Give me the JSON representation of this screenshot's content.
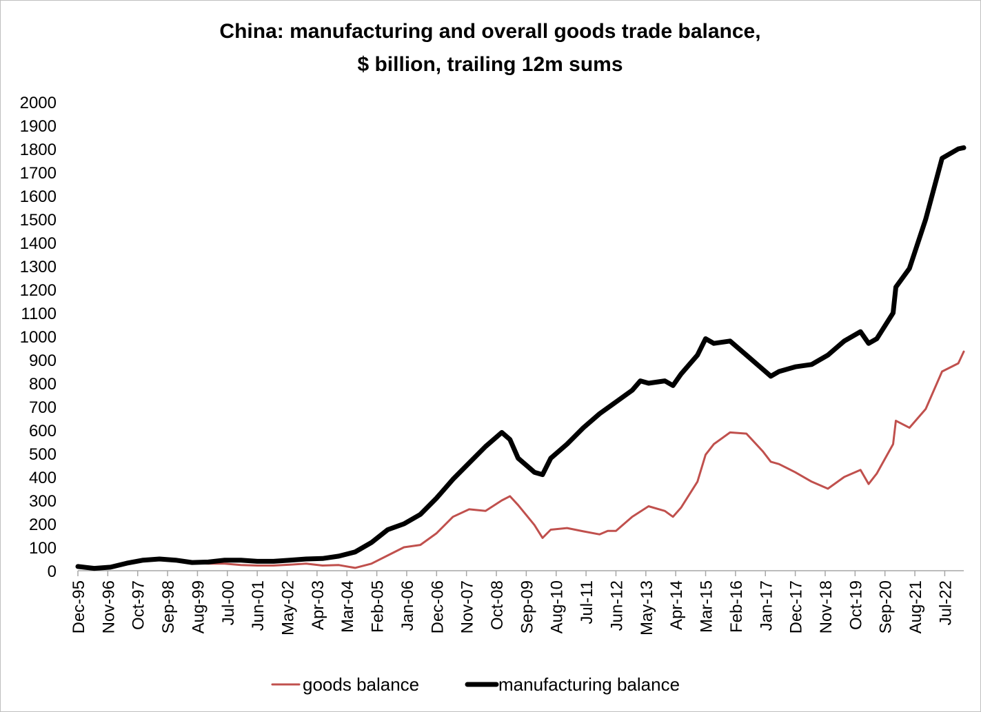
{
  "chart_data": {
    "type": "line",
    "title_lines": [
      "China: manufacturing and overall goods trade balance,",
      "$ billion, trailing 12m sums"
    ],
    "xlabel": "",
    "ylabel": "",
    "ylim": [
      0,
      2000
    ],
    "yticks": [
      "0",
      "100",
      "200",
      "300",
      "400",
      "500",
      "600",
      "700",
      "800",
      "900",
      "1000",
      "1100",
      "1200",
      "1300",
      "1400",
      "1500",
      "1600",
      "1700",
      "1800",
      "1900",
      "2000"
    ],
    "x_start": "Dec-95",
    "x_end": "Feb-23",
    "xticks": [
      "Dec-95",
      "Nov-96",
      "Oct-97",
      "Sep-98",
      "Aug-99",
      "Jul-00",
      "Jun-01",
      "May-02",
      "Apr-03",
      "Mar-04",
      "Feb-05",
      "Jan-06",
      "Dec-06",
      "Nov-07",
      "Oct-08",
      "Sep-09",
      "Aug-10",
      "Jul-11",
      "Jun-12",
      "May-13",
      "Apr-14",
      "Mar-15",
      "Feb-16",
      "Jan-17",
      "Dec-17",
      "Nov-18",
      "Oct-19",
      "Sep-20",
      "Aug-21",
      "Jul-22"
    ],
    "legend_position": "bottom",
    "series": [
      {
        "name": "goods balance",
        "color": "#c0504d",
        "points": [
          [
            "Dec-95",
            17
          ],
          [
            "Jun-96",
            10
          ],
          [
            "Dec-96",
            15
          ],
          [
            "Jun-97",
            30
          ],
          [
            "Dec-97",
            42
          ],
          [
            "Jun-98",
            47
          ],
          [
            "Dec-98",
            42
          ],
          [
            "Jun-99",
            33
          ],
          [
            "Dec-99",
            30
          ],
          [
            "Jun-00",
            30
          ],
          [
            "Dec-00",
            24
          ],
          [
            "Jun-01",
            22
          ],
          [
            "Dec-01",
            22
          ],
          [
            "Jun-02",
            26
          ],
          [
            "Dec-02",
            30
          ],
          [
            "Jun-03",
            22
          ],
          [
            "Dec-03",
            24
          ],
          [
            "Jun-04",
            12
          ],
          [
            "Dec-04",
            30
          ],
          [
            "Jun-05",
            65
          ],
          [
            "Dec-05",
            100
          ],
          [
            "Jun-06",
            110
          ],
          [
            "Dec-06",
            160
          ],
          [
            "Jun-07",
            230
          ],
          [
            "Dec-07",
            262
          ],
          [
            "Jun-08",
            255
          ],
          [
            "Dec-08",
            300
          ],
          [
            "Mar-09",
            318
          ],
          [
            "Jun-09",
            280
          ],
          [
            "Dec-09",
            195
          ],
          [
            "Mar-10",
            140
          ],
          [
            "Jun-10",
            175
          ],
          [
            "Dec-10",
            182
          ],
          [
            "Jun-11",
            168
          ],
          [
            "Dec-11",
            155
          ],
          [
            "Mar-12",
            170
          ],
          [
            "Jun-12",
            170
          ],
          [
            "Dec-12",
            230
          ],
          [
            "Jun-13",
            275
          ],
          [
            "Dec-13",
            255
          ],
          [
            "Mar-14",
            230
          ],
          [
            "Jun-14",
            270
          ],
          [
            "Dec-14",
            380
          ],
          [
            "Mar-15",
            495
          ],
          [
            "Jun-15",
            540
          ],
          [
            "Dec-15",
            590
          ],
          [
            "Jun-16",
            585
          ],
          [
            "Dec-16",
            510
          ],
          [
            "Mar-17",
            465
          ],
          [
            "Jun-17",
            455
          ],
          [
            "Dec-17",
            420
          ],
          [
            "Jun-18",
            380
          ],
          [
            "Dec-18",
            350
          ],
          [
            "Jun-19",
            400
          ],
          [
            "Dec-19",
            430
          ],
          [
            "Mar-20",
            370
          ],
          [
            "Jun-20",
            415
          ],
          [
            "Dec-20",
            540
          ],
          [
            "Jan-21",
            640
          ],
          [
            "Jun-21",
            610
          ],
          [
            "Dec-21",
            690
          ],
          [
            "Jun-22",
            850
          ],
          [
            "Dec-22",
            885
          ],
          [
            "Feb-23",
            935
          ]
        ]
      },
      {
        "name": "manufacturing balance",
        "color": "#000000",
        "points": [
          [
            "Dec-95",
            18
          ],
          [
            "Jun-96",
            10
          ],
          [
            "Dec-96",
            15
          ],
          [
            "Jun-97",
            32
          ],
          [
            "Dec-97",
            45
          ],
          [
            "Jun-98",
            50
          ],
          [
            "Dec-98",
            45
          ],
          [
            "Jun-99",
            35
          ],
          [
            "Dec-99",
            37
          ],
          [
            "Jun-00",
            45
          ],
          [
            "Dec-00",
            45
          ],
          [
            "Jun-01",
            40
          ],
          [
            "Dec-01",
            40
          ],
          [
            "Jun-02",
            45
          ],
          [
            "Dec-02",
            50
          ],
          [
            "Jun-03",
            52
          ],
          [
            "Dec-03",
            62
          ],
          [
            "Jun-04",
            80
          ],
          [
            "Dec-04",
            120
          ],
          [
            "Jun-05",
            175
          ],
          [
            "Dec-05",
            200
          ],
          [
            "Jun-06",
            240
          ],
          [
            "Dec-06",
            310
          ],
          [
            "Jun-07",
            390
          ],
          [
            "Dec-07",
            460
          ],
          [
            "Jun-08",
            530
          ],
          [
            "Dec-08",
            590
          ],
          [
            "Mar-09",
            560
          ],
          [
            "Jun-09",
            480
          ],
          [
            "Dec-09",
            420
          ],
          [
            "Mar-10",
            410
          ],
          [
            "Jun-10",
            480
          ],
          [
            "Dec-10",
            540
          ],
          [
            "Jun-11",
            610
          ],
          [
            "Dec-11",
            670
          ],
          [
            "Jun-12",
            720
          ],
          [
            "Dec-12",
            770
          ],
          [
            "Mar-13",
            810
          ],
          [
            "Jun-13",
            800
          ],
          [
            "Dec-13",
            810
          ],
          [
            "Mar-14",
            790
          ],
          [
            "Jun-14",
            840
          ],
          [
            "Dec-14",
            920
          ],
          [
            "Mar-15",
            990
          ],
          [
            "Jun-15",
            970
          ],
          [
            "Dec-15",
            980
          ],
          [
            "Jun-16",
            920
          ],
          [
            "Dec-16",
            860
          ],
          [
            "Mar-17",
            830
          ],
          [
            "Jun-17",
            850
          ],
          [
            "Dec-17",
            870
          ],
          [
            "Jun-18",
            880
          ],
          [
            "Dec-18",
            920
          ],
          [
            "Jun-19",
            980
          ],
          [
            "Dec-19",
            1020
          ],
          [
            "Mar-20",
            970
          ],
          [
            "Jun-20",
            990
          ],
          [
            "Dec-20",
            1100
          ],
          [
            "Jan-21",
            1210
          ],
          [
            "Jun-21",
            1290
          ],
          [
            "Dec-21",
            1500
          ],
          [
            "Jun-22",
            1760
          ],
          [
            "Dec-22",
            1800
          ],
          [
            "Feb-23",
            1805
          ]
        ]
      }
    ]
  }
}
